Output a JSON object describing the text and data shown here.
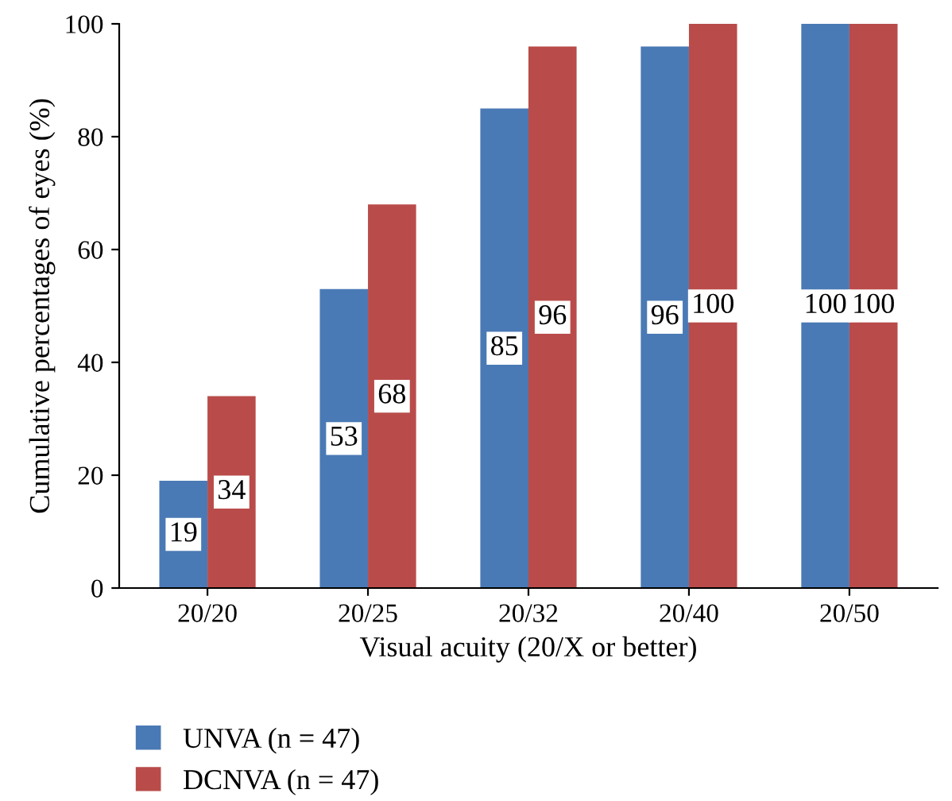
{
  "chart_data": {
    "type": "bar",
    "xlabel": "Visual acuity (20/X or better)",
    "ylabel": "Cumulative percentages of eyes (%)",
    "categories": [
      "20/20",
      "20/25",
      "20/32",
      "20/40",
      "20/50"
    ],
    "series": [
      {
        "name": "UNVA (n = 47)",
        "color": "#4a7ab5",
        "values": [
          19,
          53,
          85,
          96,
          100
        ]
      },
      {
        "name": "DCNVA (n = 47)",
        "color": "#b94c4a",
        "values": [
          34,
          68,
          96,
          100,
          100
        ]
      }
    ],
    "ylim": [
      0,
      100
    ],
    "yticks": [
      0,
      20,
      40,
      60,
      80,
      100
    ],
    "grid": false,
    "legend": "bottom",
    "data_labels": true
  }
}
